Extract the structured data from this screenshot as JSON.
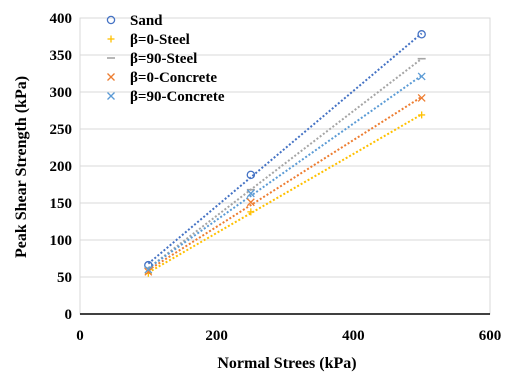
{
  "chart_data": {
    "type": "scatter",
    "xlabel": "Normal Strees (kPa)",
    "ylabel": "Peak Shear Strength (kPa)",
    "xlim": [
      0,
      600
    ],
    "ylim": [
      0,
      400
    ],
    "x_ticks": [
      "0",
      "200",
      "400",
      "600"
    ],
    "y_ticks": [
      "0",
      "50",
      "100",
      "150",
      "200",
      "250",
      "300",
      "350",
      "400"
    ],
    "grid": "horizontal",
    "legend_position": "top-left",
    "trendlines": "linear, dotted",
    "series": [
      {
        "name": "Sand",
        "marker": "circle",
        "color": "#4472C4",
        "x": [
          100,
          250,
          500
        ],
        "y": [
          66,
          188,
          378
        ]
      },
      {
        "name": "β=0-Steel",
        "marker": "plus",
        "color": "#FFC000",
        "x": [
          100,
          250,
          500
        ],
        "y": [
          55,
          138,
          269
        ]
      },
      {
        "name": "β=90-Steel",
        "marker": "dash",
        "color": "#A5A5A5",
        "x": [
          100,
          250,
          500
        ],
        "y": [
          62,
          168,
          345
        ]
      },
      {
        "name": "β=0-Concrete",
        "marker": "x",
        "color": "#ED7D31",
        "x": [
          100,
          250,
          500
        ],
        "y": [
          57,
          151,
          292
        ]
      },
      {
        "name": "β=90-Concrete",
        "marker": "x",
        "color": "#5B9BD5",
        "x": [
          100,
          250,
          500
        ],
        "y": [
          60,
          163,
          321
        ]
      }
    ]
  }
}
